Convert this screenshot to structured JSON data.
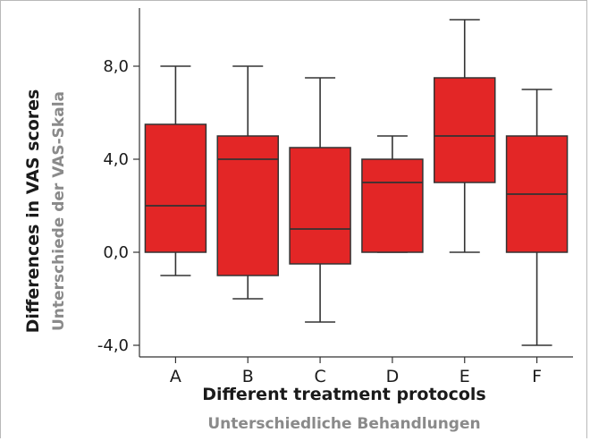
{
  "colors": {
    "box_fill": "#e32626",
    "box_stroke": "#333333",
    "axis": "#333333",
    "title_primary": "#1a1a1a",
    "title_secondary": "#8a8a8a"
  },
  "chart_data": {
    "type": "box",
    "xlabel": "Different treatment protocols",
    "xlabel_secondary": "Unterschiedliche Behandlungen",
    "ylabel": "Differences in VAS scores",
    "ylabel_secondary": "Unterschiede der VAS-Skala",
    "ylim": [
      -4.5,
      10.5
    ],
    "yticks": [
      -4,
      0,
      4,
      8
    ],
    "ytick_labels": [
      "-4,0",
      "0,0",
      "4,0",
      "8,0"
    ],
    "grid": false,
    "categories": [
      "A",
      "B",
      "C",
      "D",
      "E",
      "F"
    ],
    "boxes": [
      {
        "category": "A",
        "whisker_low": -1,
        "q1": 0,
        "median": 2,
        "q3": 5.5,
        "whisker_high": 8
      },
      {
        "category": "B",
        "whisker_low": -2,
        "q1": -1,
        "median": 4,
        "q3": 5,
        "whisker_high": 8
      },
      {
        "category": "C",
        "whisker_low": -3,
        "q1": -0.5,
        "median": 1,
        "q3": 4.5,
        "whisker_high": 7.5
      },
      {
        "category": "D",
        "whisker_low": 0,
        "q1": 0,
        "median": 3,
        "q3": 4,
        "whisker_high": 5
      },
      {
        "category": "E",
        "whisker_low": 0,
        "q1": 3,
        "median": 5,
        "q3": 7.5,
        "whisker_high": 10
      },
      {
        "category": "F",
        "whisker_low": -4,
        "q1": 0,
        "median": 2.5,
        "q3": 5,
        "whisker_high": 7
      }
    ]
  }
}
